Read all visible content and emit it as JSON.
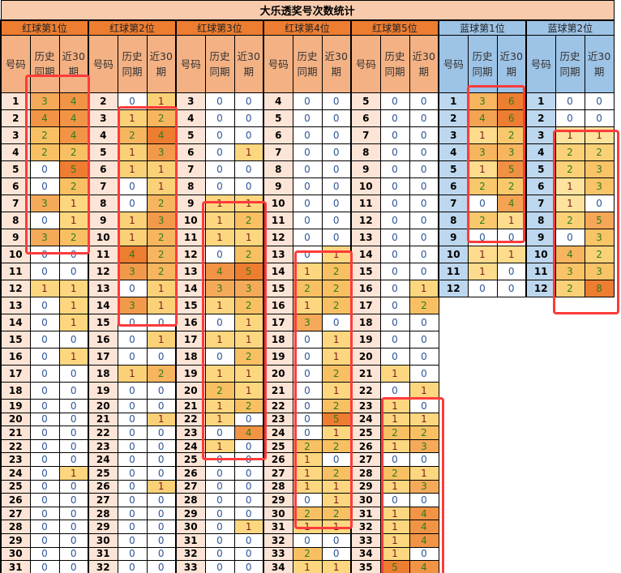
{
  "title": "大乐透奖号次数统计",
  "subheaders": {
    "number": "号码",
    "history": "历史同期",
    "recent": "近30期"
  },
  "colors": {
    "red_group_header": "#ed7d31",
    "red_subheader": "#f4b183",
    "red_number_cell": "#fce4d6",
    "blue_group_header": "#9dc3e6",
    "blue_number_cell": "#bdd7ee",
    "highlight_box": "#ff3b3b",
    "text_zero": "#2f5597",
    "text_one": "#7b1c1c",
    "text_multi": "#2e7d1a"
  },
  "groups": [
    {
      "name": "红球第1位",
      "type": "red",
      "numbers": [
        1,
        2,
        3,
        4,
        5,
        6,
        7,
        8,
        9,
        10,
        11,
        12,
        13,
        14,
        15,
        16,
        17,
        18,
        19,
        20,
        21,
        22,
        23,
        24,
        25,
        26,
        27,
        28,
        29,
        30,
        31
      ],
      "history": [
        3,
        4,
        2,
        2,
        0,
        0,
        3,
        0,
        3,
        0,
        0,
        1,
        0,
        0,
        0,
        0,
        0,
        0,
        0,
        0,
        0,
        0,
        0,
        0,
        0,
        0,
        0,
        0,
        0,
        0,
        0
      ],
      "recent": [
        4,
        4,
        4,
        2,
        5,
        2,
        1,
        1,
        2,
        0,
        0,
        1,
        1,
        1,
        0,
        1,
        0,
        0,
        0,
        0,
        0,
        0,
        0,
        1,
        0,
        0,
        0,
        0,
        0,
        0,
        0
      ]
    },
    {
      "name": "红球第2位",
      "type": "red",
      "numbers": [
        2,
        3,
        4,
        5,
        6,
        7,
        8,
        9,
        10,
        11,
        12,
        13,
        14,
        15,
        16,
        17,
        18,
        19,
        20,
        21,
        22,
        23,
        24,
        25,
        26,
        27,
        28,
        29,
        30,
        31,
        32
      ],
      "history": [
        0,
        1,
        2,
        1,
        1,
        0,
        0,
        1,
        1,
        4,
        3,
        0,
        3,
        0,
        0,
        0,
        1,
        0,
        0,
        0,
        0,
        0,
        0,
        0,
        0,
        0,
        0,
        0,
        0,
        0,
        0
      ],
      "recent": [
        1,
        2,
        4,
        3,
        1,
        1,
        2,
        3,
        2,
        2,
        2,
        1,
        1,
        0,
        1,
        0,
        2,
        0,
        0,
        1,
        0,
        0,
        0,
        0,
        1,
        0,
        0,
        0,
        0,
        0,
        0
      ]
    },
    {
      "name": "红球第3位",
      "type": "red",
      "numbers": [
        3,
        4,
        5,
        6,
        7,
        8,
        9,
        10,
        11,
        12,
        13,
        14,
        15,
        16,
        17,
        18,
        19,
        20,
        21,
        22,
        23,
        24,
        25,
        26,
        27,
        28,
        29,
        30,
        31,
        32,
        33
      ],
      "history": [
        0,
        0,
        0,
        0,
        0,
        0,
        1,
        1,
        1,
        0,
        4,
        3,
        1,
        0,
        1,
        0,
        1,
        2,
        1,
        1,
        0,
        1,
        0,
        0,
        0,
        0,
        0,
        0,
        0,
        0,
        0
      ],
      "recent": [
        0,
        0,
        0,
        1,
        0,
        0,
        1,
        2,
        1,
        2,
        5,
        3,
        2,
        1,
        1,
        2,
        1,
        1,
        2,
        0,
        4,
        0,
        0,
        0,
        0,
        0,
        0,
        1,
        0,
        0,
        0
      ]
    },
    {
      "name": "红球第4位",
      "type": "red",
      "numbers": [
        4,
        5,
        6,
        7,
        8,
        9,
        10,
        11,
        12,
        13,
        14,
        15,
        16,
        17,
        18,
        19,
        20,
        21,
        22,
        23,
        24,
        25,
        26,
        27,
        28,
        29,
        30,
        31,
        32,
        33,
        34
      ],
      "history": [
        0,
        0,
        0,
        0,
        0,
        0,
        0,
        0,
        0,
        0,
        1,
        2,
        1,
        3,
        0,
        0,
        0,
        0,
        0,
        0,
        0,
        2,
        1,
        1,
        1,
        0,
        2,
        1,
        0,
        2,
        1
      ],
      "recent": [
        0,
        0,
        0,
        0,
        0,
        0,
        0,
        0,
        0,
        1,
        2,
        2,
        2,
        0,
        1,
        1,
        2,
        1,
        2,
        5,
        1,
        2,
        0,
        2,
        1,
        1,
        2,
        1,
        0,
        0,
        1
      ]
    },
    {
      "name": "红球第5位",
      "type": "red",
      "numbers": [
        5,
        6,
        7,
        8,
        9,
        10,
        11,
        12,
        13,
        14,
        15,
        16,
        17,
        18,
        19,
        20,
        21,
        22,
        23,
        24,
        25,
        26,
        27,
        28,
        29,
        30,
        31,
        32,
        33,
        34,
        35
      ],
      "history": [
        0,
        0,
        0,
        0,
        0,
        0,
        0,
        0,
        0,
        0,
        0,
        0,
        0,
        0,
        0,
        0,
        1,
        0,
        1,
        1,
        2,
        1,
        0,
        2,
        1,
        0,
        1,
        1,
        1,
        1,
        5
      ],
      "recent": [
        0,
        0,
        0,
        0,
        0,
        0,
        0,
        0,
        0,
        0,
        0,
        1,
        2,
        0,
        0,
        0,
        0,
        1,
        0,
        1,
        2,
        3,
        0,
        1,
        3,
        0,
        4,
        4,
        4,
        0,
        4
      ]
    },
    {
      "name": "蓝球第1位",
      "type": "blue",
      "numbers": [
        1,
        2,
        3,
        4,
        5,
        6,
        7,
        8,
        9,
        10,
        11,
        12
      ],
      "history": [
        3,
        4,
        1,
        3,
        1,
        2,
        0,
        2,
        0,
        1,
        1,
        0
      ],
      "recent": [
        6,
        6,
        2,
        3,
        5,
        2,
        4,
        1,
        0,
        1,
        0,
        0
      ]
    },
    {
      "name": "蓝球第2位",
      "type": "blue",
      "numbers": [
        1,
        2,
        3,
        4,
        5,
        6,
        7,
        8,
        9,
        10,
        11,
        12
      ],
      "history": [
        0,
        0,
        1,
        2,
        2,
        1,
        1,
        2,
        0,
        4,
        3,
        2
      ],
      "recent": [
        0,
        0,
        1,
        2,
        3,
        3,
        0,
        5,
        3,
        2,
        3,
        8
      ]
    }
  ]
}
